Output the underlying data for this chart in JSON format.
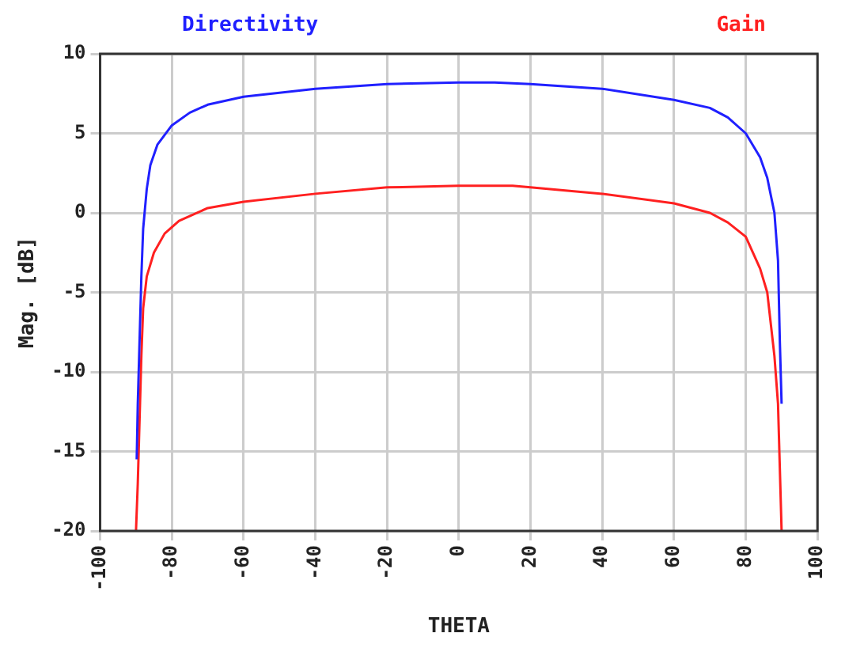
{
  "chart_data": {
    "type": "line",
    "xlabel": "THETA",
    "ylabel": "Mag. [dB]",
    "xlim": [
      -100,
      100
    ],
    "xticks": [
      -100,
      -80,
      -60,
      -40,
      -20,
      0,
      20,
      40,
      60,
      80,
      100
    ],
    "ylim": [
      -20,
      10
    ],
    "yticks": [
      -20,
      -15,
      -10,
      -5,
      0,
      5,
      10
    ],
    "grid": true,
    "legend": "top",
    "marker": "none",
    "line_style": "solid",
    "series": [
      {
        "name": "Directivity",
        "color": "#2020ff",
        "x": [
          -89.8,
          -89.5,
          -89,
          -88.5,
          -88,
          -87,
          -86,
          -84,
          -80,
          -75,
          -70,
          -60,
          -40,
          -20,
          0,
          10,
          20,
          40,
          60,
          70,
          75,
          80,
          84,
          86,
          88,
          89,
          89.5,
          90
        ],
        "values": [
          -15.5,
          -12,
          -8,
          -4,
          -1,
          1.5,
          3,
          4.3,
          5.5,
          6.3,
          6.8,
          7.3,
          7.8,
          8.1,
          8.2,
          8.2,
          8.1,
          7.8,
          7.1,
          6.6,
          6,
          5,
          3.5,
          2.2,
          0,
          -3,
          -8,
          -12
        ]
      },
      {
        "name": "Gain",
        "color": "#ff2020",
        "x": [
          -90,
          -89.5,
          -89,
          -88.5,
          -88,
          -87,
          -85,
          -82,
          -78,
          -70,
          -60,
          -40,
          -20,
          0,
          15,
          20,
          40,
          60,
          70,
          75,
          80,
          84,
          86,
          88,
          89,
          89.5,
          90
        ],
        "values": [
          -20,
          -17,
          -13,
          -9,
          -6,
          -4,
          -2.5,
          -1.3,
          -0.5,
          0.3,
          0.7,
          1.2,
          1.6,
          1.7,
          1.7,
          1.6,
          1.2,
          0.6,
          0,
          -0.6,
          -1.5,
          -3.5,
          -5,
          -9,
          -12,
          -16,
          -20
        ]
      }
    ]
  }
}
